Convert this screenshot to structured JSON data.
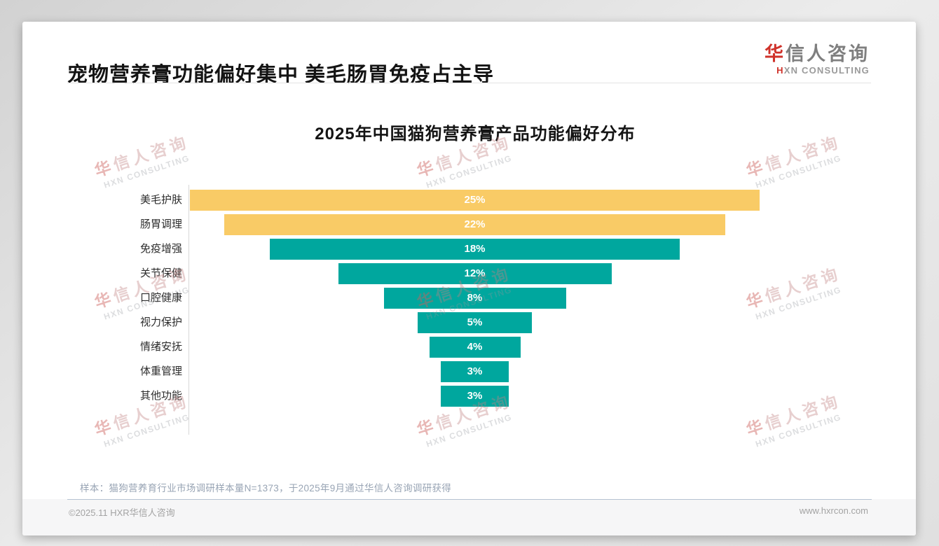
{
  "page": {
    "main_title": "宠物营养膏功能偏好集中 美毛肠胃免疫占主导",
    "logo": {
      "zh_first": "华",
      "zh_rest": "信人咨询",
      "en_first": "H",
      "en_rest": "XN CONSULTING"
    },
    "watermark": {
      "zh_first": "华",
      "zh_rest": "信人咨询",
      "en": "HXN CONSULTING"
    },
    "sample_note": "样本：猫狗营养育行业市场调研样本量N=1373，于2025年9月通过华信人咨询调研获得",
    "footer": {
      "copyright": "©2025.11 HXR华信人咨询",
      "website": "www.hxrcon.com"
    }
  },
  "chart_data": {
    "type": "bar",
    "variant": "horizontal-centered-funnel",
    "title": "2025年中国猫狗营养膏产品功能偏好分布",
    "categories": [
      "美毛护肤",
      "肠胃调理",
      "免疫增强",
      "关节保健",
      "口腔健康",
      "视力保护",
      "情绪安抚",
      "体重管理",
      "其他功能"
    ],
    "values": [
      25,
      22,
      18,
      12,
      8,
      5,
      4,
      3,
      3
    ],
    "value_labels": [
      "25%",
      "22%",
      "18%",
      "12%",
      "8%",
      "5%",
      "4%",
      "3%",
      "3%"
    ],
    "unit": "%",
    "colors": {
      "highlight": "#F9CB66",
      "default": "#00A79E",
      "value_text": "#ffffff"
    },
    "highlight_count": 2,
    "legend": "none",
    "grid": "off",
    "axis": "left-vertical-baseline"
  }
}
